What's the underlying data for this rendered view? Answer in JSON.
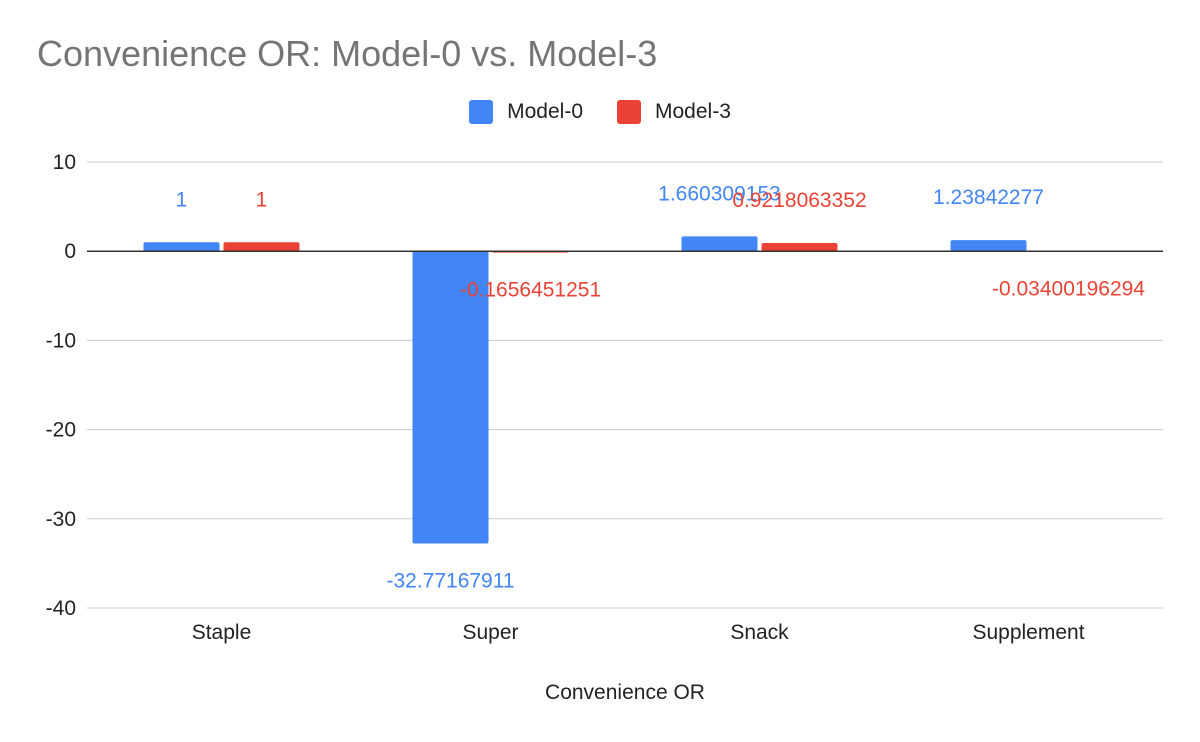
{
  "chart_data": {
    "type": "bar",
    "title": "Convenience OR: Model-0 vs. Model-3",
    "xlabel": "Convenience OR",
    "ylabel": "",
    "categories": [
      "Staple",
      "Super",
      "Snack",
      "Supplement"
    ],
    "series": [
      {
        "name": "Model-0",
        "color": "#4285f4",
        "values": [
          1,
          -32.77167911,
          1.660309153,
          1.23842277
        ],
        "labels": [
          "1",
          "-32.77167911",
          "1.660309153",
          "1.23842277"
        ]
      },
      {
        "name": "Model-3",
        "color": "#ea4335",
        "values": [
          1,
          -0.1656451251,
          0.9218063352,
          -0.03400196294
        ],
        "labels": [
          "1",
          "-0.1656451251",
          "0.9218063352",
          "-0.03400196294"
        ]
      }
    ],
    "ylim": [
      -40,
      10
    ],
    "yticks": [
      10,
      0,
      -10,
      -20,
      -30,
      -40
    ],
    "ytick_labels": [
      "10",
      "0",
      "-10",
      "-20",
      "-30",
      "-40"
    ],
    "grid": true,
    "legend_position": "top-center"
  }
}
